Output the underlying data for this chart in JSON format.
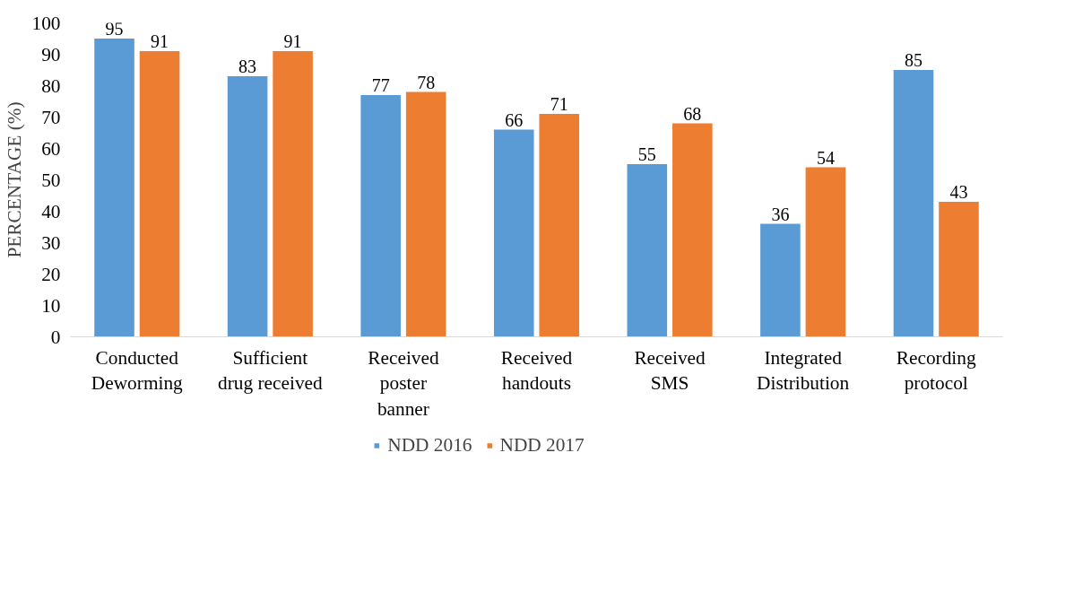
{
  "chart_data": {
    "type": "bar",
    "ylabel": "PERCENTAGE (%)",
    "categories": [
      "Conducted\nDeworming",
      "Sufficient\ndrug received",
      "Received\nposter\nbanner",
      "Received\nhandouts",
      "Received\nSMS",
      "Integrated\nDistribution",
      "Recording\nprotocol"
    ],
    "series": [
      {
        "name": "NDD 2016",
        "color": "#5b9bd5",
        "values": [
          95,
          83,
          77,
          66,
          55,
          36,
          85
        ]
      },
      {
        "name": "NDD 2017",
        "color": "#ed7d31",
        "values": [
          91,
          91,
          78,
          71,
          68,
          54,
          43
        ]
      }
    ],
    "ylim": [
      0,
      100
    ],
    "yticks": [
      0,
      10,
      20,
      30,
      40,
      50,
      60,
      70,
      80,
      90,
      100
    ],
    "data_labels": true,
    "grid": false,
    "legend": "bottom"
  }
}
